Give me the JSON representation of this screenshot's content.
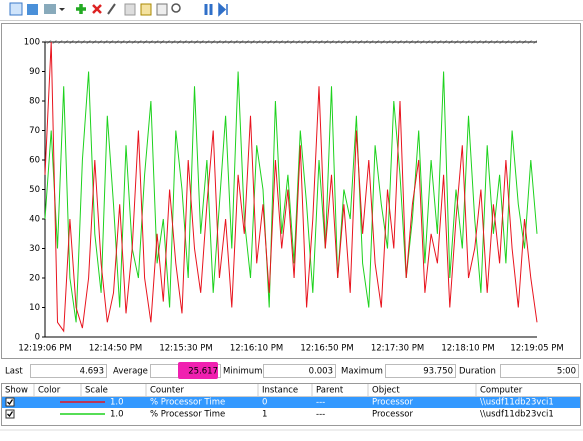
{
  "chart_data": {
    "type": "line",
    "ylim": [
      0,
      100
    ],
    "yticks": [
      0,
      10,
      20,
      30,
      40,
      50,
      60,
      70,
      80,
      90,
      100
    ],
    "x_labels": [
      "12:19:06 PM",
      "12:14:50 PM",
      "12:15:30 PM",
      "12:16:10 PM",
      "12:16:50 PM",
      "12:17:30 PM",
      "12:18:10 PM",
      "12:19:05 PM"
    ],
    "series": [
      {
        "color": "#e8141e",
        "values": [
          55,
          100,
          5,
          2,
          40,
          10,
          3,
          20,
          60,
          25,
          5,
          15,
          45,
          8,
          30,
          70,
          20,
          5,
          35,
          12,
          50,
          25,
          8,
          60,
          30,
          15,
          45,
          70,
          20,
          40,
          10,
          55,
          35,
          75,
          25,
          45,
          15,
          60,
          30,
          50,
          20,
          65,
          10,
          40,
          85,
          30,
          55,
          20,
          45,
          15,
          70,
          35,
          60,
          25,
          10,
          50,
          30,
          80,
          20,
          45,
          60,
          15,
          35,
          25,
          55,
          10,
          40,
          65,
          20,
          30,
          50,
          15,
          45,
          25,
          60,
          30,
          10,
          40,
          20,
          5
        ]
      },
      {
        "color": "#1ed21e",
        "values": [
          40,
          70,
          30,
          85,
          20,
          5,
          60,
          90,
          35,
          15,
          75,
          45,
          10,
          65,
          30,
          20,
          55,
          80,
          25,
          40,
          10,
          70,
          50,
          20,
          85,
          35,
          60,
          15,
          45,
          75,
          30,
          90,
          40,
          20,
          65,
          50,
          10,
          80,
          35,
          55,
          25,
          70,
          45,
          15,
          60,
          30,
          85,
          20,
          50,
          40,
          75,
          25,
          10,
          65,
          45,
          30,
          80,
          55,
          20,
          40,
          70,
          25,
          60,
          35,
          90,
          20,
          50,
          30,
          75,
          40,
          15,
          65,
          35,
          55,
          25,
          70,
          45,
          30,
          60,
          35
        ]
      }
    ]
  },
  "stats": {
    "last_label": "Last",
    "last": "4.693",
    "average_label": "Average",
    "average": "25.617",
    "minimum_label": "Minimum",
    "minimum": "0.003",
    "maximum_label": "Maximum",
    "maximum": "93.750",
    "duration_label": "Duration",
    "duration": "5:00"
  },
  "table": {
    "headers": [
      "Show",
      "Color",
      "Scale",
      "Counter",
      "Instance",
      "Parent",
      "Object",
      "Computer"
    ],
    "rows": [
      [
        "1.0",
        "% Processor Time",
        "0",
        "---",
        "Processor",
        "\\\\usdf11db23vci1"
      ],
      [
        "1.0",
        "% Processor Time",
        "1",
        "---",
        "Processor",
        "\\\\usdf11db23vci1"
      ]
    ]
  }
}
